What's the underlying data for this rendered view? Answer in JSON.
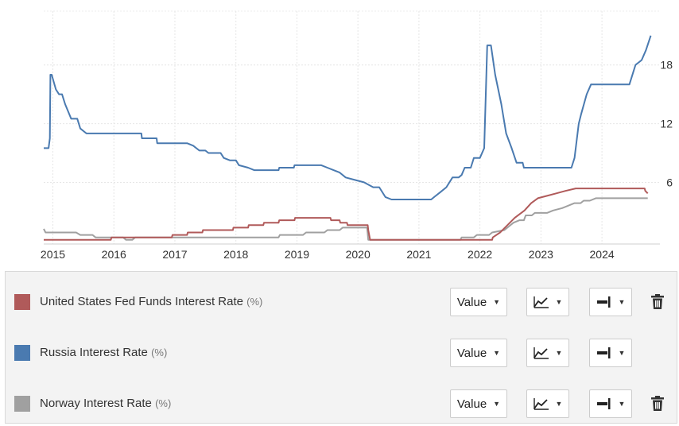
{
  "chart_data": {
    "type": "line",
    "title": "",
    "xlabel": "",
    "ylabel": "",
    "x_ticks": [
      "2015",
      "2016",
      "2017",
      "2018",
      "2019",
      "2020",
      "2021",
      "2022",
      "2023",
      "2024"
    ],
    "y_ticks": [
      6,
      12,
      18
    ],
    "xlim": [
      2014.85,
      2024.95
    ],
    "ylim": [
      -0.3,
      23.5
    ],
    "y_axis_side": "right",
    "grid": true,
    "series": [
      {
        "name": "United States Fed Funds Interest Rate",
        "color": "#b05a5a",
        "points": [
          [
            2014.85,
            0.125
          ],
          [
            2015.95,
            0.125
          ],
          [
            2015.96,
            0.375
          ],
          [
            2016.95,
            0.375
          ],
          [
            2016.96,
            0.625
          ],
          [
            2017.2,
            0.625
          ],
          [
            2017.21,
            0.875
          ],
          [
            2017.45,
            0.875
          ],
          [
            2017.46,
            1.125
          ],
          [
            2017.95,
            1.125
          ],
          [
            2017.96,
            1.375
          ],
          [
            2018.2,
            1.375
          ],
          [
            2018.21,
            1.625
          ],
          [
            2018.45,
            1.625
          ],
          [
            2018.46,
            1.875
          ],
          [
            2018.7,
            1.875
          ],
          [
            2018.71,
            2.125
          ],
          [
            2018.96,
            2.125
          ],
          [
            2018.97,
            2.375
          ],
          [
            2019.55,
            2.375
          ],
          [
            2019.56,
            2.125
          ],
          [
            2019.7,
            2.125
          ],
          [
            2019.71,
            1.875
          ],
          [
            2019.82,
            1.875
          ],
          [
            2019.83,
            1.625
          ],
          [
            2020.16,
            1.625
          ],
          [
            2020.17,
            1.125
          ],
          [
            2020.2,
            0.125
          ],
          [
            2022.2,
            0.125
          ],
          [
            2022.21,
            0.375
          ],
          [
            2022.33,
            0.875
          ],
          [
            2022.45,
            1.625
          ],
          [
            2022.57,
            2.375
          ],
          [
            2022.73,
            3.125
          ],
          [
            2022.84,
            3.875
          ],
          [
            2022.95,
            4.375
          ],
          [
            2023.1,
            4.625
          ],
          [
            2023.25,
            4.875
          ],
          [
            2023.4,
            5.125
          ],
          [
            2023.57,
            5.375
          ],
          [
            2024.7,
            5.375
          ],
          [
            2024.71,
            5.125
          ],
          [
            2024.75,
            4.875
          ]
        ]
      },
      {
        "name": "Russia Interest Rate",
        "color": "#4a7ab0",
        "points": [
          [
            2014.85,
            9.5
          ],
          [
            2014.93,
            9.5
          ],
          [
            2014.95,
            10.5
          ],
          [
            2014.96,
            17
          ],
          [
            2014.98,
            17
          ],
          [
            2015.05,
            15.5
          ],
          [
            2015.1,
            15
          ],
          [
            2015.15,
            15
          ],
          [
            2015.2,
            14
          ],
          [
            2015.3,
            12.5
          ],
          [
            2015.4,
            12.5
          ],
          [
            2015.45,
            11.5
          ],
          [
            2015.55,
            11
          ],
          [
            2016.45,
            11
          ],
          [
            2016.46,
            10.5
          ],
          [
            2016.7,
            10.5
          ],
          [
            2016.71,
            10
          ],
          [
            2017.2,
            10
          ],
          [
            2017.3,
            9.75
          ],
          [
            2017.4,
            9.25
          ],
          [
            2017.5,
            9.25
          ],
          [
            2017.55,
            9
          ],
          [
            2017.75,
            9
          ],
          [
            2017.8,
            8.5
          ],
          [
            2017.9,
            8.25
          ],
          [
            2018.0,
            8.25
          ],
          [
            2018.05,
            7.75
          ],
          [
            2018.2,
            7.5
          ],
          [
            2018.3,
            7.25
          ],
          [
            2018.7,
            7.25
          ],
          [
            2018.71,
            7.5
          ],
          [
            2018.95,
            7.5
          ],
          [
            2018.96,
            7.75
          ],
          [
            2019.4,
            7.75
          ],
          [
            2019.5,
            7.5
          ],
          [
            2019.6,
            7.25
          ],
          [
            2019.7,
            7.0
          ],
          [
            2019.8,
            6.5
          ],
          [
            2019.95,
            6.25
          ],
          [
            2020.1,
            6.0
          ],
          [
            2020.25,
            5.5
          ],
          [
            2020.35,
            5.5
          ],
          [
            2020.45,
            4.5
          ],
          [
            2020.55,
            4.25
          ],
          [
            2021.2,
            4.25
          ],
          [
            2021.25,
            4.5
          ],
          [
            2021.35,
            5.0
          ],
          [
            2021.45,
            5.5
          ],
          [
            2021.55,
            6.5
          ],
          [
            2021.65,
            6.5
          ],
          [
            2021.7,
            6.75
          ],
          [
            2021.75,
            7.5
          ],
          [
            2021.85,
            7.5
          ],
          [
            2021.9,
            8.5
          ],
          [
            2022.0,
            8.5
          ],
          [
            2022.07,
            9.5
          ],
          [
            2022.12,
            20
          ],
          [
            2022.18,
            20
          ],
          [
            2022.25,
            17
          ],
          [
            2022.35,
            14
          ],
          [
            2022.43,
            11
          ],
          [
            2022.52,
            9.5
          ],
          [
            2022.6,
            8
          ],
          [
            2022.7,
            8
          ],
          [
            2022.72,
            7.5
          ],
          [
            2023.5,
            7.5
          ],
          [
            2023.55,
            8.5
          ],
          [
            2023.62,
            12
          ],
          [
            2023.66,
            13
          ],
          [
            2023.75,
            15
          ],
          [
            2023.82,
            16
          ],
          [
            2023.9,
            16
          ],
          [
            2024.45,
            16
          ],
          [
            2024.55,
            18
          ],
          [
            2024.65,
            18.5
          ],
          [
            2024.72,
            19.5
          ],
          [
            2024.8,
            21
          ]
        ]
      },
      {
        "name": "Norway Interest Rate",
        "color": "#a0a0a0",
        "points": [
          [
            2014.85,
            1.25
          ],
          [
            2014.88,
            0.875
          ],
          [
            2015.38,
            0.875
          ],
          [
            2015.45,
            0.625
          ],
          [
            2015.65,
            0.625
          ],
          [
            2015.7,
            0.375
          ],
          [
            2016.15,
            0.375
          ],
          [
            2016.2,
            0.125
          ],
          [
            2016.3,
            0.125
          ],
          [
            2016.35,
            0.375
          ],
          [
            2017.2,
            0.375
          ],
          [
            2017.25,
            0.375
          ],
          [
            2018.7,
            0.375
          ],
          [
            2018.72,
            0.625
          ],
          [
            2019.1,
            0.625
          ],
          [
            2019.15,
            0.875
          ],
          [
            2019.45,
            0.875
          ],
          [
            2019.5,
            1.125
          ],
          [
            2019.7,
            1.125
          ],
          [
            2019.75,
            1.375
          ],
          [
            2020.15,
            1.375
          ],
          [
            2020.17,
            0.125
          ],
          [
            2021.68,
            0.125
          ],
          [
            2021.7,
            0.375
          ],
          [
            2021.9,
            0.375
          ],
          [
            2021.95,
            0.625
          ],
          [
            2022.15,
            0.625
          ],
          [
            2022.2,
            0.875
          ],
          [
            2022.4,
            1.125
          ],
          [
            2022.45,
            1.375
          ],
          [
            2022.55,
            1.875
          ],
          [
            2022.65,
            2.125
          ],
          [
            2022.72,
            2.125
          ],
          [
            2022.75,
            2.625
          ],
          [
            2022.85,
            2.625
          ],
          [
            2022.9,
            2.875
          ],
          [
            2023.1,
            2.875
          ],
          [
            2023.2,
            3.125
          ],
          [
            2023.35,
            3.375
          ],
          [
            2023.45,
            3.625
          ],
          [
            2023.55,
            3.875
          ],
          [
            2023.65,
            3.875
          ],
          [
            2023.7,
            4.125
          ],
          [
            2023.8,
            4.125
          ],
          [
            2023.9,
            4.375
          ],
          [
            2024.75,
            4.375
          ]
        ]
      }
    ]
  },
  "legend": {
    "unit_suffix": "(%)",
    "value_label": "Value"
  }
}
